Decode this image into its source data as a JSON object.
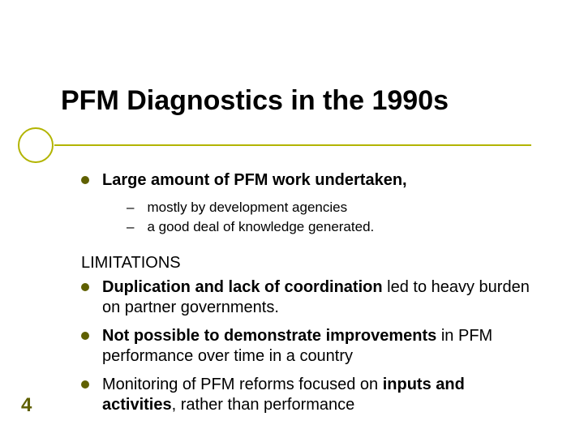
{
  "colors": {
    "accent": "#b2b400",
    "bullet_dot": "#5f6000",
    "page_number": "#5f6000",
    "background": "#ffffff",
    "text": "#000000"
  },
  "typography": {
    "title_fontsize": 34,
    "body_fontsize": 20,
    "sub_fontsize": 17,
    "page_number_fontsize": 24,
    "font_family": "Arial"
  },
  "title": "PFM Diagnostics in the 1990s",
  "page_number": "4",
  "point1": {
    "text_bold": "Large amount of PFM work undertaken,",
    "sub1": "mostly by development agencies",
    "sub2": "a good deal of knowledge generated."
  },
  "limitations_heading": "LIMITATIONS",
  "lim1": {
    "bold": "Duplication and lack of coordination",
    "rest": " led to heavy burden on partner governments."
  },
  "lim2": {
    "bold": "Not possible to demonstrate improvements",
    "rest": " in PFM performance over time in a country"
  },
  "lim3": {
    "pre": "Monitoring of PFM reforms focused on ",
    "bold": "inputs and activities",
    "rest": ", rather than performance"
  }
}
